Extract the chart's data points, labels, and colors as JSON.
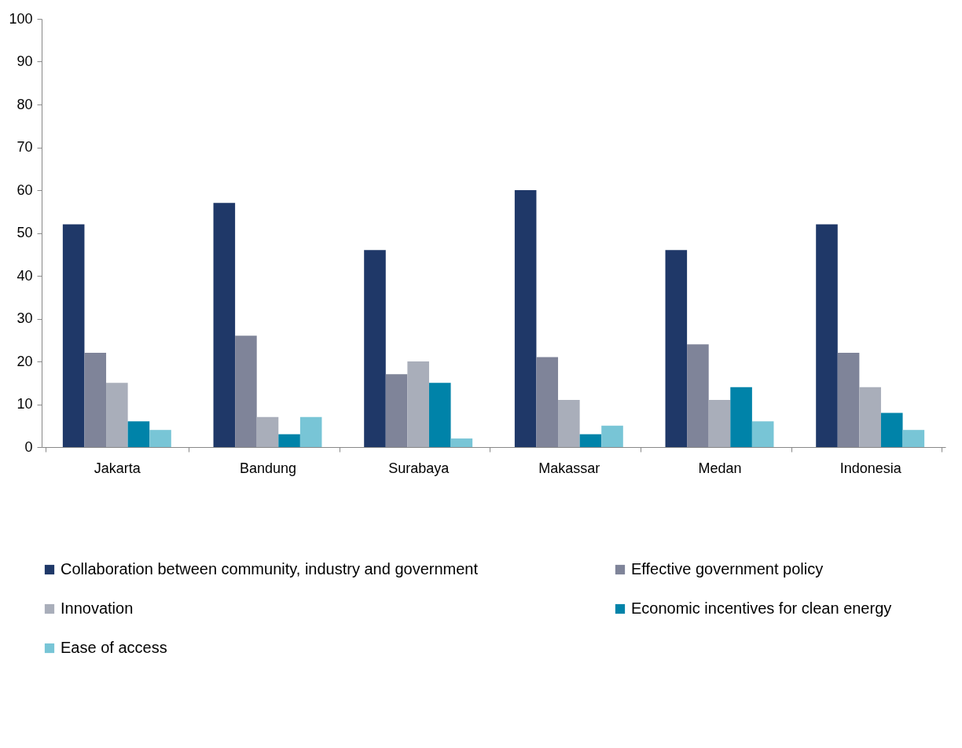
{
  "chart_data": {
    "type": "bar",
    "categories": [
      "Jakarta",
      "Bandung",
      "Surabaya",
      "Makassar",
      "Medan",
      "Indonesia"
    ],
    "series": [
      {
        "name": "Collaboration between community, industry and government",
        "color": "#1f3868",
        "values": [
          52,
          57,
          46,
          60,
          46,
          52
        ]
      },
      {
        "name": "Effective government policy",
        "color": "#7f8499",
        "values": [
          22,
          26,
          17,
          21,
          24,
          22
        ]
      },
      {
        "name": "Innovation",
        "color": "#a9aeba",
        "values": [
          15,
          7,
          20,
          11,
          11,
          14
        ]
      },
      {
        "name": "Economic incentives for clean energy",
        "color": "#0083a9",
        "values": [
          6,
          3,
          15,
          3,
          14,
          8
        ]
      },
      {
        "name": "Ease of access",
        "color": "#78c5d6",
        "values": [
          4,
          7,
          2,
          5,
          6,
          4
        ]
      }
    ],
    "ylim": [
      0,
      100
    ],
    "yticks": [
      0,
      10,
      20,
      30,
      40,
      50,
      60,
      70,
      80,
      90,
      100
    ],
    "grid": false,
    "legend": "bottom"
  }
}
